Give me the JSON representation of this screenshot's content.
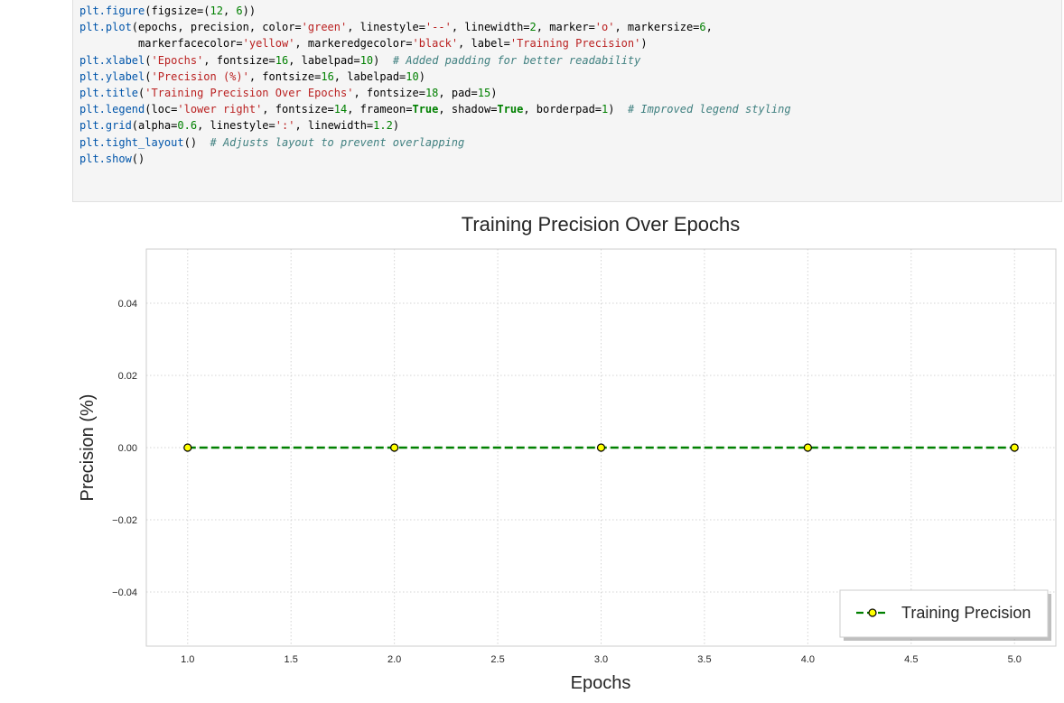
{
  "code_cell": {
    "lines": [
      [
        {
          "t": "fn",
          "v": "plt.figure"
        },
        {
          "t": "plain",
          "v": "(figsize=("
        },
        {
          "t": "num",
          "v": "12"
        },
        {
          "t": "plain",
          "v": ", "
        },
        {
          "t": "num",
          "v": "6"
        },
        {
          "t": "plain",
          "v": "))"
        }
      ],
      [
        {
          "t": "fn",
          "v": "plt.plot"
        },
        {
          "t": "plain",
          "v": "(epochs, precision, color="
        },
        {
          "t": "str",
          "v": "'green'"
        },
        {
          "t": "plain",
          "v": ", linestyle="
        },
        {
          "t": "str",
          "v": "'--'"
        },
        {
          "t": "plain",
          "v": ", linewidth="
        },
        {
          "t": "num",
          "v": "2"
        },
        {
          "t": "plain",
          "v": ", marker="
        },
        {
          "t": "str",
          "v": "'o'"
        },
        {
          "t": "plain",
          "v": ", markersize="
        },
        {
          "t": "num",
          "v": "6"
        },
        {
          "t": "plain",
          "v": ","
        }
      ],
      [
        {
          "t": "plain",
          "v": "         markerfacecolor="
        },
        {
          "t": "str",
          "v": "'yellow'"
        },
        {
          "t": "plain",
          "v": ", markeredgecolor="
        },
        {
          "t": "str",
          "v": "'black'"
        },
        {
          "t": "plain",
          "v": ", label="
        },
        {
          "t": "str",
          "v": "'Training Precision'"
        },
        {
          "t": "plain",
          "v": ")"
        }
      ],
      [
        {
          "t": "fn",
          "v": "plt.xlabel"
        },
        {
          "t": "plain",
          "v": "("
        },
        {
          "t": "str",
          "v": "'Epochs'"
        },
        {
          "t": "plain",
          "v": ", fontsize="
        },
        {
          "t": "num",
          "v": "16"
        },
        {
          "t": "plain",
          "v": ", labelpad="
        },
        {
          "t": "num",
          "v": "10"
        },
        {
          "t": "plain",
          "v": ")  "
        },
        {
          "t": "com",
          "v": "# Added padding for better readability"
        }
      ],
      [
        {
          "t": "fn",
          "v": "plt.ylabel"
        },
        {
          "t": "plain",
          "v": "("
        },
        {
          "t": "str",
          "v": "'Precision (%)'"
        },
        {
          "t": "plain",
          "v": ", fontsize="
        },
        {
          "t": "num",
          "v": "16"
        },
        {
          "t": "plain",
          "v": ", labelpad="
        },
        {
          "t": "num",
          "v": "10"
        },
        {
          "t": "plain",
          "v": ")"
        }
      ],
      [
        {
          "t": "fn",
          "v": "plt.title"
        },
        {
          "t": "plain",
          "v": "("
        },
        {
          "t": "str",
          "v": "'Training Precision Over Epochs'"
        },
        {
          "t": "plain",
          "v": ", fontsize="
        },
        {
          "t": "num",
          "v": "18"
        },
        {
          "t": "plain",
          "v": ", pad="
        },
        {
          "t": "num",
          "v": "15"
        },
        {
          "t": "plain",
          "v": ")"
        }
      ],
      [
        {
          "t": "fn",
          "v": "plt.legend"
        },
        {
          "t": "plain",
          "v": "(loc="
        },
        {
          "t": "str",
          "v": "'lower right'"
        },
        {
          "t": "plain",
          "v": ", fontsize="
        },
        {
          "t": "num",
          "v": "14"
        },
        {
          "t": "plain",
          "v": ", frameon="
        },
        {
          "t": "kw",
          "v": "True"
        },
        {
          "t": "plain",
          "v": ", shadow="
        },
        {
          "t": "kw",
          "v": "True"
        },
        {
          "t": "plain",
          "v": ", borderpad="
        },
        {
          "t": "num",
          "v": "1"
        },
        {
          "t": "plain",
          "v": ")  "
        },
        {
          "t": "com",
          "v": "# Improved legend styling"
        }
      ],
      [
        {
          "t": "fn",
          "v": "plt.grid"
        },
        {
          "t": "plain",
          "v": "(alpha="
        },
        {
          "t": "num",
          "v": "0.6"
        },
        {
          "t": "plain",
          "v": ", linestyle="
        },
        {
          "t": "str",
          "v": "':'"
        },
        {
          "t": "plain",
          "v": ", linewidth="
        },
        {
          "t": "num",
          "v": "1.2"
        },
        {
          "t": "plain",
          "v": ")"
        }
      ],
      [
        {
          "t": "fn",
          "v": "plt.tight_layout"
        },
        {
          "t": "plain",
          "v": "()  "
        },
        {
          "t": "com",
          "v": "# Adjusts layout to prevent overlapping"
        }
      ],
      [
        {
          "t": "fn",
          "v": "plt.show"
        },
        {
          "t": "plain",
          "v": "()"
        }
      ]
    ]
  },
  "chart_data": {
    "type": "line",
    "title": "Training Precision Over Epochs",
    "xlabel": "Epochs",
    "ylabel": "Precision (%)",
    "x": [
      1.0,
      2.0,
      3.0,
      4.0,
      5.0
    ],
    "series": [
      {
        "name": "Training Precision",
        "values": [
          0.0,
          0.0,
          0.0,
          0.0,
          0.0
        ],
        "color": "#008000",
        "linestyle": "dashed",
        "marker": "circle",
        "marker_face_color": "#ffff00",
        "marker_edge_color": "#000000"
      }
    ],
    "xlim": [
      0.8,
      5.2
    ],
    "ylim": [
      -0.055,
      0.055
    ],
    "xticks": [
      1.0,
      1.5,
      2.0,
      2.5,
      3.0,
      3.5,
      4.0,
      4.5,
      5.0
    ],
    "xtick_labels": [
      "1.0",
      "1.5",
      "2.0",
      "2.5",
      "3.0",
      "3.5",
      "4.0",
      "4.5",
      "5.0"
    ],
    "yticks": [
      -0.04,
      -0.02,
      0.0,
      0.02,
      0.04
    ],
    "ytick_labels": [
      "−0.04",
      "−0.02",
      "0.00",
      "0.02",
      "0.04"
    ],
    "grid": true,
    "grid_style": "dotted",
    "legend_position": "lower-right"
  }
}
